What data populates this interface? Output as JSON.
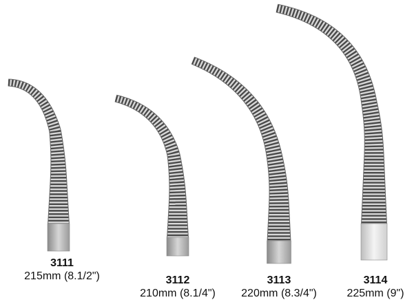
{
  "products": [
    {
      "code": "3111",
      "size": "215mm (8.1/2\")"
    },
    {
      "code": "3112",
      "size": "210mm (8.1/4\")"
    },
    {
      "code": "3113",
      "size": "220mm (8.3/4\")"
    },
    {
      "code": "3114",
      "size": "225mm (9\")"
    }
  ]
}
